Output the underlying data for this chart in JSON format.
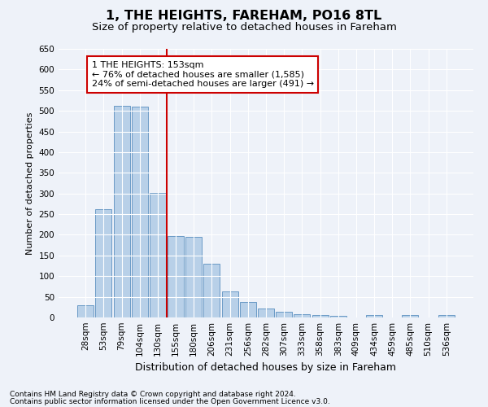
{
  "title": "1, THE HEIGHTS, FAREHAM, PO16 8TL",
  "subtitle": "Size of property relative to detached houses in Fareham",
  "xlabel": "Distribution of detached houses by size in Fareham",
  "ylabel": "Number of detached properties",
  "footnote1": "Contains HM Land Registry data © Crown copyright and database right 2024.",
  "footnote2": "Contains public sector information licensed under the Open Government Licence v3.0.",
  "categories": [
    "28sqm",
    "53sqm",
    "79sqm",
    "104sqm",
    "130sqm",
    "155sqm",
    "180sqm",
    "206sqm",
    "231sqm",
    "256sqm",
    "282sqm",
    "307sqm",
    "333sqm",
    "358sqm",
    "383sqm",
    "409sqm",
    "434sqm",
    "459sqm",
    "485sqm",
    "510sqm",
    "536sqm"
  ],
  "values": [
    30,
    262,
    513,
    510,
    302,
    196,
    195,
    130,
    63,
    38,
    22,
    14,
    8,
    5,
    4,
    0,
    5,
    0,
    5,
    0,
    5
  ],
  "bar_color": "#b8d0e8",
  "bar_edge_color": "#5a8fc0",
  "vline_color": "#cc0000",
  "vline_x_index": 4.5,
  "annotation_text": "1 THE HEIGHTS: 153sqm\n← 76% of detached houses are smaller (1,585)\n24% of semi-detached houses are larger (491) →",
  "annotation_box_color": "#ffffff",
  "annotation_box_edge": "#cc0000",
  "ylim": [
    0,
    650
  ],
  "yticks": [
    0,
    50,
    100,
    150,
    200,
    250,
    300,
    350,
    400,
    450,
    500,
    550,
    600,
    650
  ],
  "bg_color": "#eef2f9",
  "plot_bg_color": "#eef2f9",
  "grid_color": "#ffffff",
  "title_fontsize": 11.5,
  "subtitle_fontsize": 9.5,
  "xlabel_fontsize": 9,
  "ylabel_fontsize": 8,
  "tick_fontsize": 7.5,
  "annotation_fontsize": 8
}
